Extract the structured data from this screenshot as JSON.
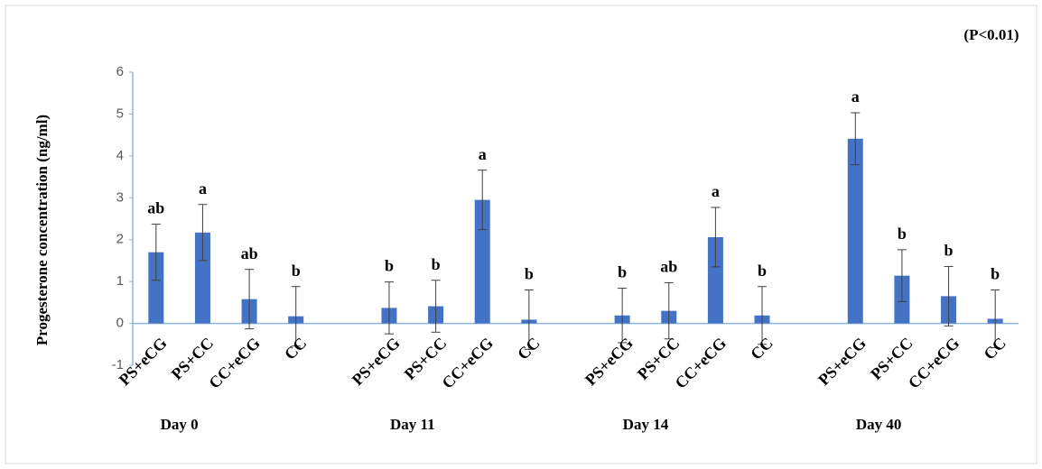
{
  "chart_data": {
    "type": "bar",
    "annotation": "(P<0.01)",
    "y_label": "Progesterone concentration (ng/ml)",
    "color": "#4472c4",
    "ylim": [
      -1,
      6
    ],
    "yticks": [
      -1,
      0,
      1,
      2,
      3,
      4,
      5,
      6
    ],
    "groups": [
      {
        "name": "Day 0",
        "categories": [
          "PS+eCG",
          "PS+CC",
          "CC+eCG",
          "CC"
        ],
        "values": [
          1.7,
          2.17,
          0.58,
          0.17
        ],
        "errors": [
          0.67,
          0.67,
          0.71,
          0.71
        ],
        "letters": [
          "ab",
          "a",
          "ab",
          "b"
        ]
      },
      {
        "name": "Day 11",
        "categories": [
          "PS+eCG",
          "PS+CC",
          "CC+eCG",
          "CC"
        ],
        "values": [
          0.37,
          0.41,
          2.95,
          0.09
        ],
        "errors": [
          0.62,
          0.62,
          0.71,
          0.71
        ],
        "letters": [
          "b",
          "b",
          "a",
          "b"
        ]
      },
      {
        "name": "Day 14",
        "categories": [
          "PS+eCG",
          "PS+CC",
          "CC+eCG",
          "CC"
        ],
        "values": [
          0.19,
          0.3,
          2.06,
          0.19
        ],
        "errors": [
          0.65,
          0.67,
          0.71,
          0.69
        ],
        "letters": [
          "b",
          "ab",
          "a",
          "b"
        ]
      },
      {
        "name": "Day 40",
        "categories": [
          "PS+eCG",
          "PS+CC",
          "CC+eCG",
          "CC"
        ],
        "values": [
          4.41,
          1.14,
          0.65,
          0.11
        ],
        "errors": [
          0.62,
          0.62,
          0.71,
          0.69
        ],
        "letters": [
          "a",
          "b",
          "b",
          "b"
        ]
      }
    ]
  }
}
